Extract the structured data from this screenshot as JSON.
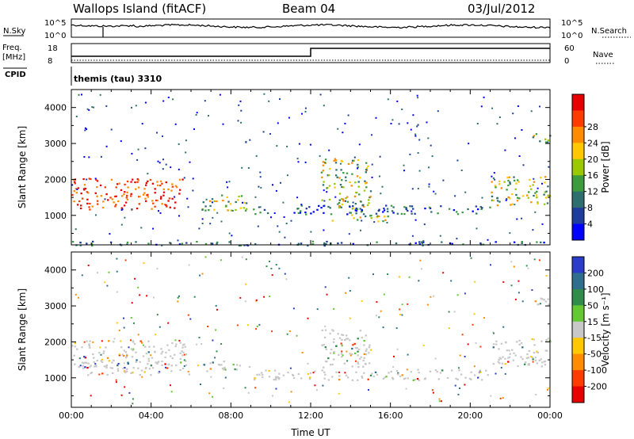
{
  "header": {
    "station": "Wallops Island (fitACF)",
    "beam": "Beam 04",
    "date": "03/Jul/2012"
  },
  "summary": {
    "nsky_label": "N.Sky",
    "nsearch_label": "N.Search",
    "noise_ticks": [
      "10^5",
      "10^0"
    ],
    "freq_label": "Freq.",
    "freq_unit": "[MHz]",
    "freq_ticks": [
      "18",
      "8"
    ],
    "nave_label": "Nave",
    "nave_ticks": [
      "60",
      "0"
    ],
    "cpid_label": "CPID",
    "cpid_value": "themis (tau) 3310"
  },
  "chart_data": [
    {
      "type": "heatmap",
      "name": "power",
      "ylabel": "Slant Range [km]",
      "xlabel": "",
      "x_ticks": [
        "00:00",
        "04:00",
        "08:00",
        "12:00",
        "16:00",
        "20:00",
        "00:00"
      ],
      "xlim_hours": [
        0,
        24
      ],
      "y_ticks": [
        1000,
        2000,
        3000,
        4000
      ],
      "ylim": [
        180,
        4500
      ],
      "colorbar": {
        "label": "Power [dB]",
        "ticks": [
          4,
          8,
          12,
          16,
          20,
          24,
          28
        ],
        "colors": [
          "#0000ff",
          "#1e3c9b",
          "#2f6e6e",
          "#3c9b3c",
          "#9bc800",
          "#ffc800",
          "#ff8c00",
          "#ff3c00",
          "#e60000"
        ]
      },
      "features": [
        {
          "t0": 0,
          "t1": 5.6,
          "r0": 1180,
          "r1": 2050,
          "level": "high"
        },
        {
          "t0": 6.5,
          "t1": 9.0,
          "r0": 1150,
          "r1": 1600,
          "level": "mid"
        },
        {
          "t0": 9.0,
          "t1": 21.0,
          "r0": 1050,
          "r1": 1300,
          "level": "low"
        },
        {
          "t0": 12.5,
          "t1": 15.0,
          "r0": 1200,
          "r1": 2600,
          "level": "mid"
        },
        {
          "t0": 13.0,
          "t1": 16.0,
          "r0": 850,
          "r1": 1050,
          "level": "mid"
        },
        {
          "t0": 21.0,
          "t1": 24.0,
          "r0": 1300,
          "r1": 2100,
          "level": "mid"
        },
        {
          "t0": 23.0,
          "t1": 24.0,
          "r0": 3000,
          "r1": 3300,
          "level": "mid"
        },
        {
          "t0": 0,
          "t1": 24.0,
          "r0": 180,
          "r1": 300,
          "level": "low"
        }
      ]
    },
    {
      "type": "heatmap",
      "name": "velocity",
      "ylabel": "Slant Range [km]",
      "xlabel": "Time UT",
      "x_ticks": [
        "00:00",
        "04:00",
        "08:00",
        "12:00",
        "16:00",
        "20:00",
        "00:00"
      ],
      "xlim_hours": [
        0,
        24
      ],
      "y_ticks": [
        1000,
        2000,
        3000,
        4000
      ],
      "ylim": [
        180,
        4500
      ],
      "colorbar": {
        "label": "Velocity [m s⁻¹]",
        "ticks": [
          200,
          100,
          50,
          15,
          -15,
          -50,
          -100,
          -200
        ],
        "colors": [
          "#2a3cc8",
          "#2f6e8c",
          "#2f8c4a",
          "#64c832",
          "#c8c8c8",
          "#ffc800",
          "#ff8c00",
          "#ff3c00",
          "#e60000"
        ]
      },
      "features": [
        {
          "t0": 0,
          "t1": 6.0,
          "r0": 1100,
          "r1": 2050,
          "level": "ground"
        },
        {
          "t0": 6.5,
          "t1": 9.0,
          "r0": 1200,
          "r1": 1500,
          "level": "ground"
        },
        {
          "t0": 9.0,
          "t1": 21.0,
          "r0": 950,
          "r1": 1250,
          "level": "ground"
        },
        {
          "t0": 12.5,
          "t1": 15.0,
          "r0": 1300,
          "r1": 2400,
          "level": "ground"
        },
        {
          "t0": 21.0,
          "t1": 24.0,
          "r0": 1300,
          "r1": 2100,
          "level": "ground"
        },
        {
          "t0": 23.0,
          "t1": 24.0,
          "r0": 3000,
          "r1": 3300,
          "level": "ground"
        }
      ]
    }
  ],
  "colors": {
    "ground_scatter": "#c8c8c8",
    "axis": "#000000"
  }
}
